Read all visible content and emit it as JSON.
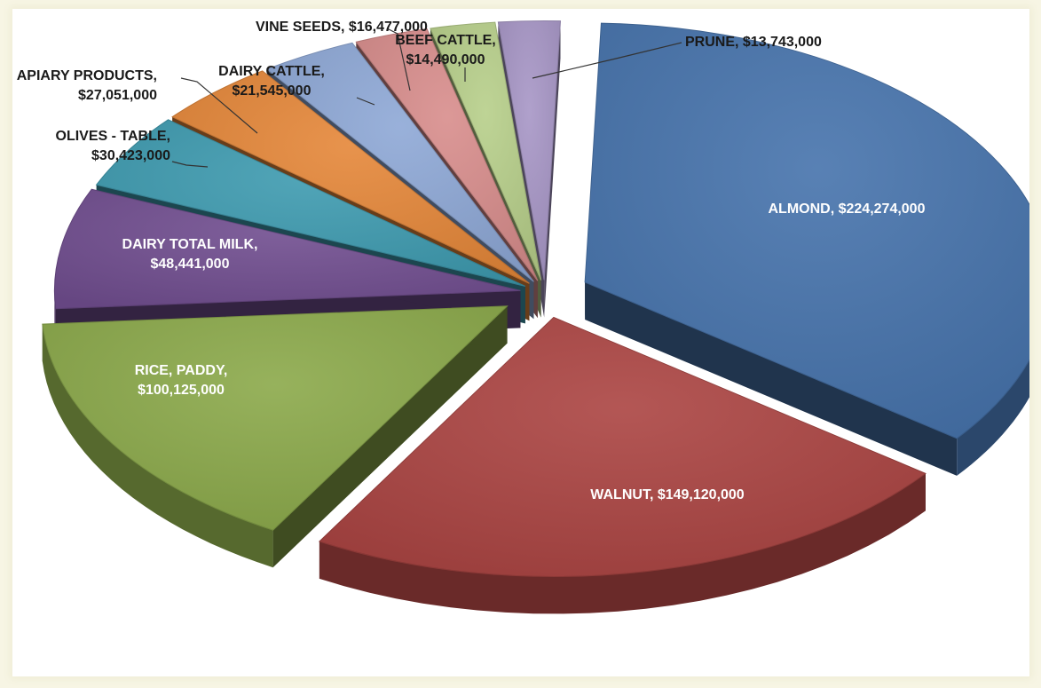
{
  "chart_data": {
    "type": "pie",
    "title": "",
    "style": "3D exploded pie, no legend",
    "slices": [
      {
        "label": "ALMOND",
        "value": 224274000,
        "value_text": "$224,274,000",
        "color": "#4673ac",
        "label_lines": [
          "ALMOND,  $224,274,000"
        ],
        "label_position": "inside"
      },
      {
        "label": "WALNUT",
        "value": 149120000,
        "value_text": "$149,120,000",
        "color": "#ab4442",
        "label_lines": [
          "WALNUT,  $149,120,000"
        ],
        "label_position": "inside"
      },
      {
        "label": "RICE, PADDY",
        "value": 100125000,
        "value_text": "$100,125,000",
        "color": "#8ba94a",
        "label_lines": [
          "RICE, PADDY,",
          "$100,125,000"
        ],
        "label_position": "inside"
      },
      {
        "label": "DAIRY TOTAL MILK",
        "value": 48441000,
        "value_text": "$48,441,000",
        "color": "#714e90",
        "label_lines": [
          "DAIRY TOTAL MILK,",
          "$48,441,000"
        ],
        "label_position": "inside"
      },
      {
        "label": "OLIVES - TABLE",
        "value": 30423000,
        "value_text": "$30,423,000",
        "color": "#3e9bb0",
        "label_lines": [
          "OLIVES - TABLE,",
          "$30,423,000"
        ],
        "label_position": "outside"
      },
      {
        "label": "APIARY PRODUCTS",
        "value": 27051000,
        "value_text": "$27,051,000",
        "color": "#e58739",
        "label_lines": [
          "APIARY PRODUCTS,",
          "$27,051,000"
        ],
        "label_position": "outside"
      },
      {
        "label": "DAIRY CATTLE",
        "value": 21545000,
        "value_text": "$21,545,000",
        "color": "#8ea8d6",
        "label_lines": [
          "DAIRY CATTLE,",
          "$21,545,000"
        ],
        "label_position": "outside"
      },
      {
        "label": "VINE SEEDS",
        "value": 16477000,
        "value_text": "$16,477,000",
        "color": "#d88d8c",
        "label_lines": [
          "VINE SEEDS,  $16,477,000"
        ],
        "label_position": "outside"
      },
      {
        "label": "BEEF CATTLE",
        "value": 14490000,
        "value_text": "$14,490,000",
        "color": "#b7cf8a",
        "label_lines": [
          "BEEF CATTLE,",
          "$14,490,000"
        ],
        "label_position": "outside"
      },
      {
        "label": "PRUNE",
        "value": 13743000,
        "value_text": "$13,743,000",
        "color": "#a796c6",
        "label_lines": [
          "PRUNE,  $13,743,000"
        ],
        "label_position": "outside"
      }
    ]
  }
}
